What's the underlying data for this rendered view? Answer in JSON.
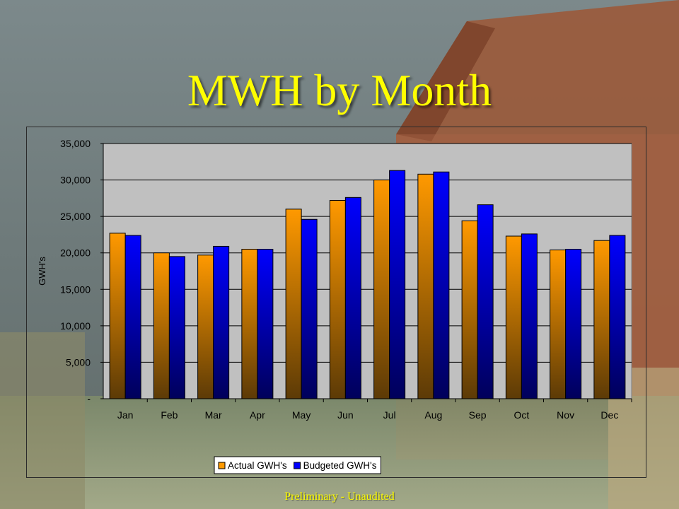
{
  "slide": {
    "title": "MWH by Month",
    "footer": "Preliminary - Unaudited"
  },
  "colors": {
    "title": "#ffff00",
    "plot_bg": "#c0c0c0",
    "actual_top": "#ff9900",
    "actual_bottom": "#5c3a06",
    "budget_top": "#0000ff",
    "budget_bottom": "#00005a"
  },
  "chart_data": {
    "type": "bar",
    "title": "",
    "xlabel": "",
    "ylabel": "GWH's",
    "ylim": [
      0,
      35000
    ],
    "yticks": [
      0,
      5000,
      10000,
      15000,
      20000,
      25000,
      30000,
      35000
    ],
    "ytick_labels": [
      "-",
      "5,000",
      "10,000",
      "15,000",
      "20,000",
      "25,000",
      "30,000",
      "35,000"
    ],
    "grid": true,
    "legend_position": "bottom",
    "categories": [
      "Jan",
      "Feb",
      "Mar",
      "Apr",
      "May",
      "Jun",
      "Jul",
      "Aug",
      "Sep",
      "Oct",
      "Nov",
      "Dec"
    ],
    "series": [
      {
        "name": "Actual GWH's",
        "values": [
          22700,
          20000,
          19700,
          20500,
          26000,
          27200,
          30000,
          30800,
          24400,
          22300,
          20400,
          21700
        ]
      },
      {
        "name": "Budgeted GWH's",
        "values": [
          22400,
          19500,
          20900,
          20500,
          24600,
          27600,
          31300,
          31100,
          26600,
          22600,
          20500,
          22400
        ]
      }
    ]
  }
}
